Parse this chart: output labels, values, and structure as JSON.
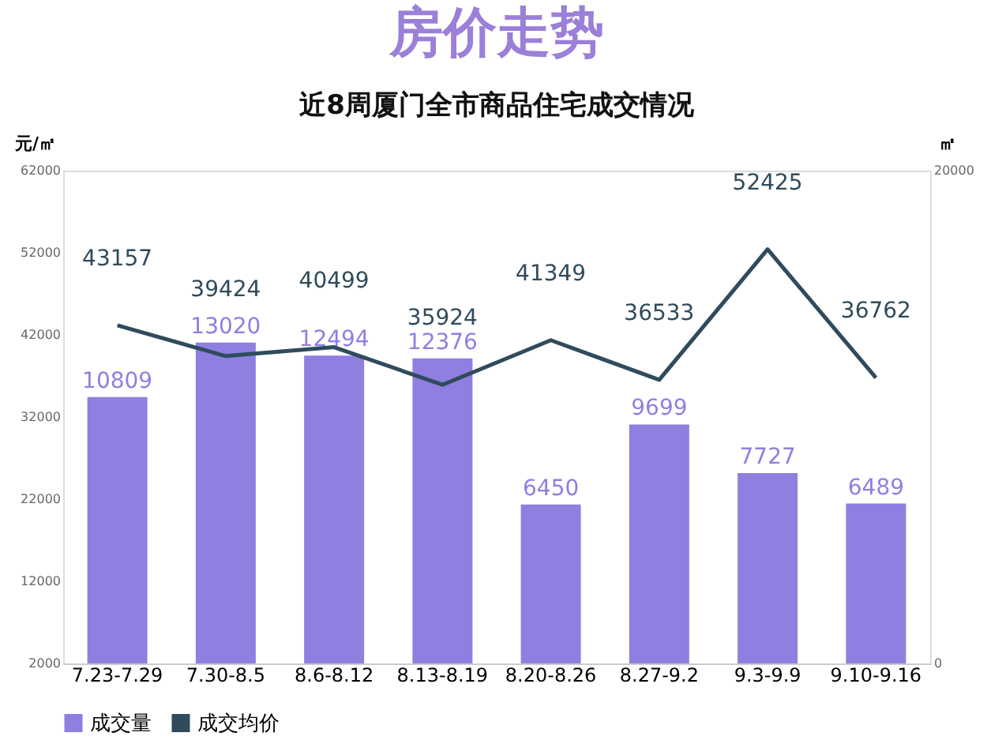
{
  "chart_data": {
    "type": "bar",
    "title": "房价走势",
    "subtitle": "近8周厦门全市商品住宅成交情况",
    "ylabel": "元/㎡",
    "y2label": "㎡",
    "categories": [
      "7.23-7.29",
      "7.30-8.5",
      "8.6-8.12",
      "8.13-8.19",
      "8.20-8.26",
      "8.27-9.2",
      "9.3-9.9",
      "9.10-9.16"
    ],
    "series": [
      {
        "name": "成交量",
        "axis": "y2",
        "color": "#8f7fe0",
        "values": [
          10809,
          13020,
          12494,
          12376,
          6450,
          9699,
          7727,
          6489
        ]
      },
      {
        "name": "成交均价",
        "type": "line",
        "axis": "y",
        "color": "#2f4b5c",
        "values": [
          43157,
          39424,
          40499,
          35924,
          41349,
          36533,
          52425,
          36762
        ]
      }
    ],
    "ylim": [
      2000,
      62000
    ],
    "yticks": [
      2000,
      12000,
      22000,
      32000,
      42000,
      52000,
      62000
    ],
    "y2lim": [
      0,
      20000
    ],
    "y2ticks": [
      0,
      20000
    ],
    "data_labels": true,
    "grid": false,
    "legend": "bottom",
    "marker": "none",
    "line_style": "solid"
  }
}
